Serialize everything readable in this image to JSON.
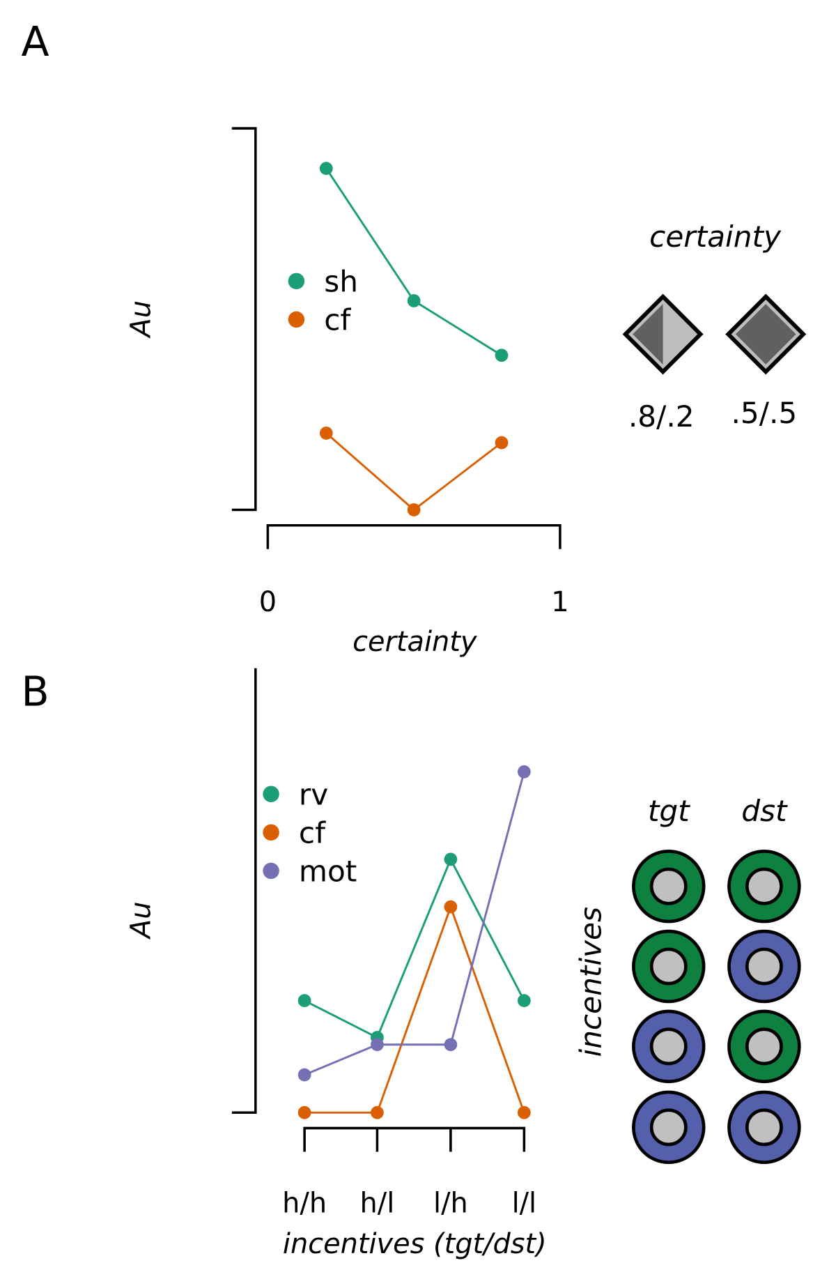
{
  "chart_data": [
    {
      "panel": "A",
      "type": "line",
      "xlabel": "certainty",
      "ylabel": "Au",
      "xlim": [
        0,
        1
      ],
      "ylim": [
        0,
        1
      ],
      "xtick_labels": [
        "0",
        "1"
      ],
      "x": [
        0.2,
        0.5,
        0.8
      ],
      "series": [
        {
          "name": "sh",
          "color": "#1b9e77",
          "values": [
            0.895,
            0.548,
            0.405
          ]
        },
        {
          "name": "cf",
          "color": "#d95f02",
          "values": [
            0.201,
            0.0,
            0.176
          ]
        }
      ],
      "legend_position": "upper-left",
      "key": {
        "title": "certainty",
        "items": [
          {
            "label": ".8/.2",
            "split": true
          },
          {
            "label": ".5/.5",
            "split": false
          }
        ]
      }
    },
    {
      "panel": "B",
      "type": "line",
      "xlabel": "incentives (tgt/dst)",
      "ylabel": "Au",
      "categories": [
        "h/h",
        "h/l",
        "l/h",
        "l/l"
      ],
      "ylim": [
        0,
        1
      ],
      "series": [
        {
          "name": "rv",
          "color": "#1b9e77",
          "values": [
            0.252,
            0.169,
            0.57,
            0.252
          ]
        },
        {
          "name": "cf",
          "color": "#d95f02",
          "values": [
            0.0,
            0.0,
            0.463,
            0.0
          ]
        },
        {
          "name": "mot",
          "color": "#7570b3",
          "values": [
            0.085,
            0.153,
            0.153,
            0.767
          ]
        }
      ],
      "legend_position": "upper-left",
      "key": {
        "title": "incentives",
        "columns": [
          "tgt",
          "dst"
        ],
        "rows": [
          [
            "high",
            "high"
          ],
          [
            "high",
            "low"
          ],
          [
            "low",
            "high"
          ],
          [
            "low",
            "low"
          ]
        ],
        "colors": {
          "high": "#0e8040",
          "low": "#5560ad"
        }
      }
    }
  ],
  "labels": {
    "panel_a": "A",
    "panel_b": "B"
  }
}
